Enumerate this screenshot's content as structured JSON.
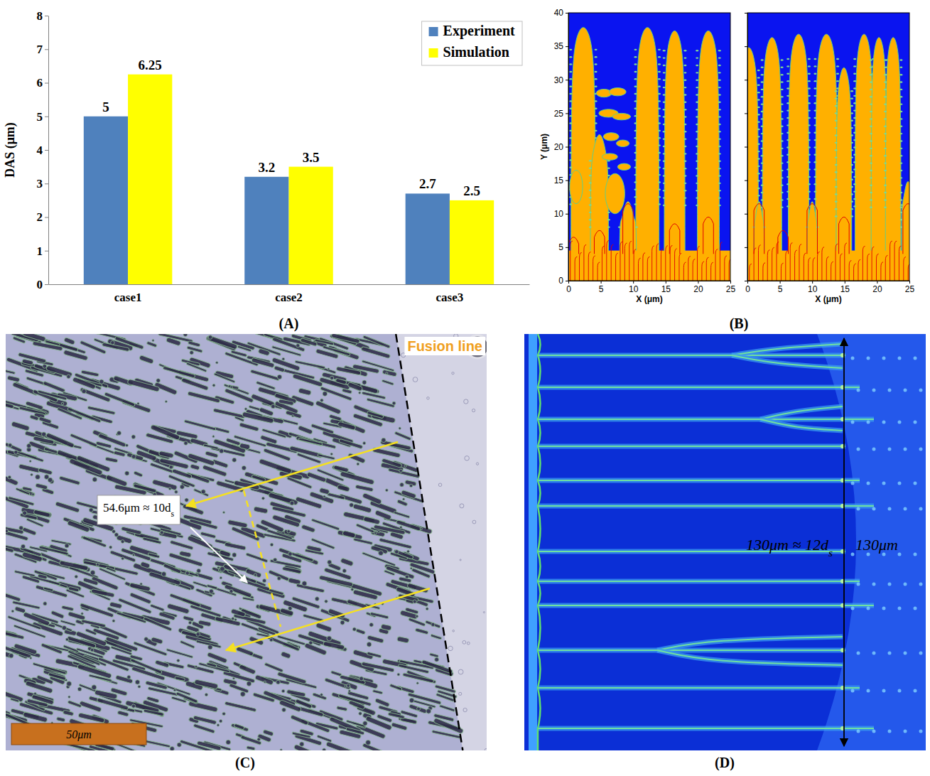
{
  "panel_labels": [
    "(A)",
    "(B)",
    "(C)",
    "(D)"
  ],
  "chart_data": [
    {
      "type": "bar",
      "ylabel": "DAS (μm)",
      "categories": [
        "case1",
        "case2",
        "case3"
      ],
      "series": [
        {
          "name": "Experiment",
          "color": "#4f81bd",
          "values": [
            5,
            3.2,
            2.7
          ]
        },
        {
          "name": "Simulation",
          "color": "#ffff00",
          "values": [
            6.25,
            3.5,
            2.5
          ]
        }
      ],
      "ylim": [
        0,
        8
      ],
      "yticks": [
        0,
        1,
        2,
        3,
        4,
        5,
        6,
        7,
        8
      ],
      "grid": false,
      "legend": "upper right",
      "data_labels": true
    },
    {
      "type": "image",
      "xlabel": "X (μm)",
      "ylabel": "Y (μm)",
      "xlim": [
        0,
        25
      ],
      "ylim": [
        0,
        40
      ],
      "xticks": [
        0,
        5,
        10,
        15,
        20,
        25
      ],
      "yticks": [
        0,
        5,
        10,
        15,
        20,
        25,
        30,
        35,
        40
      ]
    },
    {
      "type": "image",
      "xlabel": "X (μm)",
      "xlim": [
        0,
        25
      ],
      "ylim": [
        0,
        40
      ],
      "xticks": [
        0,
        5,
        10,
        15,
        20,
        25
      ],
      "yticks": [
        0,
        5,
        10,
        15,
        20,
        25,
        30,
        35,
        40
      ],
      "tick_labels": "x"
    }
  ],
  "micrograph": {
    "label": "Fusion line",
    "annotation": "54.6μm ≈ 10ds",
    "scale_bar": "50μm"
  },
  "simulation": {
    "annotation": "130μm ≈ 12ds",
    "label": "130μm"
  }
}
